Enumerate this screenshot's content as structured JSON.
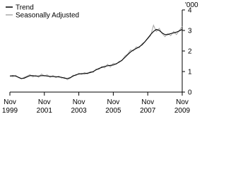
{
  "chart_data": {
    "type": "line",
    "y_label": "'000",
    "categories": [
      "Nov 1999",
      null,
      null,
      null,
      null,
      null,
      null,
      null,
      null,
      null,
      null,
      null,
      "Nov 2001",
      null,
      null,
      null,
      null,
      null,
      null,
      null,
      null,
      null,
      null,
      null,
      "Nov 2003",
      null,
      null,
      null,
      null,
      null,
      null,
      null,
      null,
      null,
      null,
      null,
      "Nov 2005",
      null,
      null,
      null,
      null,
      null,
      null,
      null,
      null,
      null,
      null,
      null,
      "Nov 2007",
      null,
      null,
      null,
      null,
      null,
      null,
      null,
      null,
      null,
      null,
      null,
      "Nov 2009"
    ],
    "series": [
      {
        "name": "Seasonally Adjusted",
        "color": "#aaaaaa",
        "values": [
          0.8,
          0.75,
          0.82,
          0.7,
          0.64,
          0.72,
          0.78,
          0.85,
          0.74,
          0.82,
          0.72,
          0.88,
          0.78,
          0.84,
          0.72,
          0.8,
          0.7,
          0.78,
          0.68,
          0.72,
          0.6,
          0.68,
          0.82,
          0.8,
          0.92,
          0.86,
          0.95,
          0.88,
          1.0,
          0.96,
          1.12,
          1.1,
          1.25,
          1.18,
          1.35,
          1.22,
          1.4,
          1.35,
          1.5,
          1.52,
          1.75,
          1.85,
          2.05,
          2.0,
          2.2,
          2.15,
          2.35,
          2.45,
          2.6,
          2.75,
          3.25,
          2.95,
          3.1,
          2.85,
          2.7,
          2.85,
          2.75,
          2.95,
          2.8,
          3.0,
          3.2
        ]
      },
      {
        "name": "Trend",
        "color": "#000000",
        "values": [
          0.78,
          0.8,
          0.78,
          0.72,
          0.66,
          0.68,
          0.74,
          0.8,
          0.8,
          0.78,
          0.78,
          0.8,
          0.8,
          0.78,
          0.76,
          0.76,
          0.75,
          0.74,
          0.72,
          0.68,
          0.66,
          0.7,
          0.78,
          0.84,
          0.88,
          0.9,
          0.9,
          0.92,
          0.95,
          1.0,
          1.08,
          1.15,
          1.2,
          1.25,
          1.28,
          1.3,
          1.32,
          1.38,
          1.45,
          1.55,
          1.68,
          1.82,
          1.95,
          2.05,
          2.12,
          2.2,
          2.3,
          2.45,
          2.62,
          2.8,
          2.95,
          3.05,
          3.0,
          2.88,
          2.8,
          2.8,
          2.85,
          2.88,
          2.92,
          2.98,
          3.05
        ]
      }
    ],
    "legend_order": [
      "Trend",
      "Seasonally Adjusted"
    ],
    "ylim": [
      0,
      4
    ],
    "yticks": [
      0,
      1,
      2,
      3,
      4
    ],
    "y_axis_side": "right",
    "legend": "upper left"
  }
}
